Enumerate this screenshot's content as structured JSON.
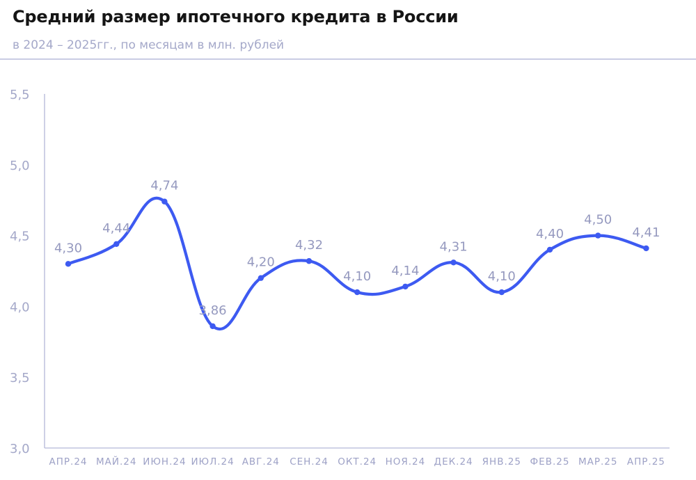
{
  "header": {
    "title": "Средний размер ипотечного кредита в России",
    "subtitle": "в 2024 – 2025гг., по месяцам в млн. рублей"
  },
  "colors": {
    "line": "#3d5af1",
    "axis": "#b3b7d8",
    "tick_text": "#a4a8c9",
    "data_label": "#9599bf",
    "divider": "#c9cce4"
  },
  "chart_data": {
    "type": "line",
    "categories": [
      "АПР.24",
      "МАЙ.24",
      "ИЮН.24",
      "ИЮЛ.24",
      "АВГ.24",
      "СЕН.24",
      "ОКТ.24",
      "НОЯ.24",
      "ДЕК.24",
      "ЯНВ.25",
      "ФЕВ.25",
      "МАР.25",
      "АПР.25"
    ],
    "values": [
      4.3,
      4.44,
      4.74,
      3.86,
      4.2,
      4.32,
      4.1,
      4.14,
      4.31,
      4.1,
      4.4,
      4.5,
      4.41
    ],
    "data_labels": [
      "4,30",
      "4,44",
      "4,74",
      "3,86",
      "4,20",
      "4,32",
      "4,10",
      "4,14",
      "4,31",
      "4,10",
      "4,40",
      "4,50",
      "4,41"
    ],
    "ylim": [
      3.0,
      5.5
    ],
    "yticks": [
      {
        "value": 3.0,
        "label": "3,0"
      },
      {
        "value": 3.5,
        "label": "3,5"
      },
      {
        "value": 4.0,
        "label": "4,0"
      },
      {
        "value": 4.5,
        "label": "4,5"
      },
      {
        "value": 5.0,
        "label": "5,0"
      },
      {
        "value": 5.5,
        "label": "5,5"
      }
    ],
    "title": "Средний размер ипотечного кредита в России",
    "subtitle": "в 2024 – 2025гг., по месяцам в млн. рублей",
    "xlabel": "",
    "ylabel": "",
    "grid": false,
    "legend": "none",
    "smooth": true
  }
}
